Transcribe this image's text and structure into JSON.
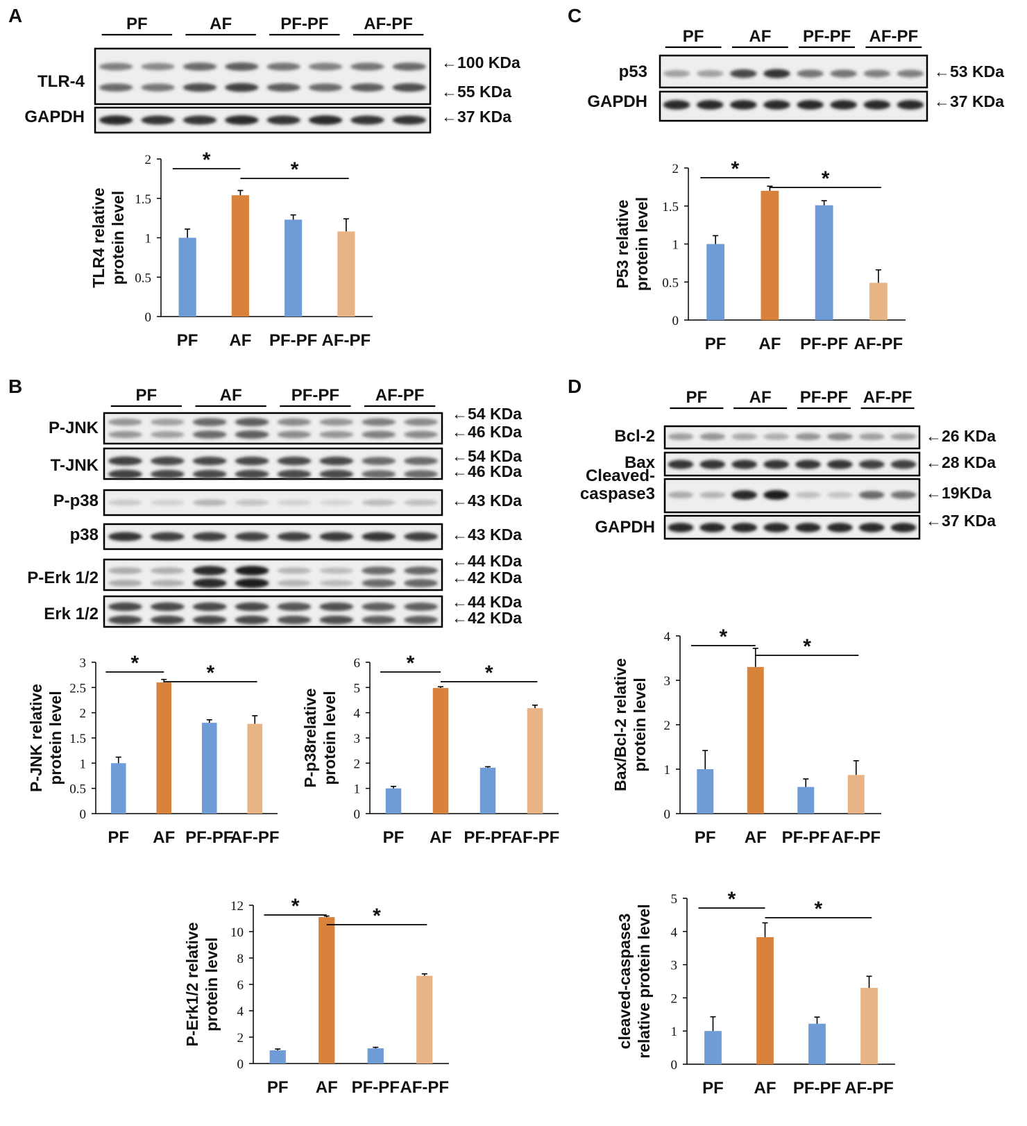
{
  "colors": {
    "blue": "#6f9bd6",
    "orange": "#d9823b",
    "peach": "#e8b486",
    "line": "#000000"
  },
  "panels": [
    {
      "label": "A",
      "groups": [
        "PF",
        "AF",
        "PF-PF",
        "AF-PF"
      ],
      "blots": [
        {
          "label": "TLR-4",
          "bands": 2,
          "markers": [
            "←100 KDa",
            "←55 KDa"
          ]
        },
        {
          "label": "GAPDH",
          "bands": 1,
          "markers": [
            "←37 KDa"
          ]
        }
      ]
    },
    {
      "label": "B",
      "groups": [
        "PF",
        "AF",
        "PF-PF",
        "AF-PF"
      ],
      "blots": [
        {
          "label": "P-JNK",
          "bands": 2,
          "markers": [
            "←54 KDa",
            "←46 KDa"
          ]
        },
        {
          "label": "T-JNK",
          "bands": 2,
          "markers": [
            "←54 KDa",
            "←46 KDa"
          ]
        },
        {
          "label": "P-p38",
          "bands": 1,
          "markers": [
            "←43 KDa"
          ]
        },
        {
          "label": "p38",
          "bands": 1,
          "markers": [
            "←43 KDa"
          ]
        },
        {
          "label": "P-Erk 1/2",
          "bands": 2,
          "markers": [
            "←44 KDa",
            "←42 KDa"
          ]
        },
        {
          "label": "Erk 1/2",
          "bands": 2,
          "markers": [
            "←44 KDa",
            "←42 KDa"
          ]
        }
      ]
    },
    {
      "label": "C",
      "groups": [
        "PF",
        "AF",
        "PF-PF",
        "AF-PF"
      ],
      "blots": [
        {
          "label": "p53",
          "bands": 1,
          "markers": [
            "←53 KDa"
          ]
        },
        {
          "label": "GAPDH",
          "bands": 1,
          "markers": [
            "←37 KDa"
          ]
        }
      ]
    },
    {
      "label": "D",
      "groups": [
        "PF",
        "AF",
        "PF-PF",
        "AF-PF"
      ],
      "blots": [
        {
          "label": "Bcl-2",
          "bands": 1,
          "markers": [
            "←26 KDa"
          ]
        },
        {
          "label": "Bax",
          "bands": 1,
          "markers": [
            "←28 KDa"
          ]
        },
        {
          "label": "Cleaved-\ncaspase3",
          "bands": 1,
          "markers": [
            "←19KDa"
          ]
        },
        {
          "label": "GAPDH",
          "bands": 1,
          "markers": [
            "←37 KDa"
          ]
        }
      ]
    }
  ],
  "chart_data": [
    {
      "type": "bar",
      "panel": "A",
      "categories": [
        "PF",
        "AF",
        "PF-PF",
        "AF-PF"
      ],
      "values": [
        1.0,
        1.54,
        1.23,
        1.08
      ],
      "errors": [
        0.11,
        0.06,
        0.06,
        0.16
      ],
      "ylabel": [
        "TLR4 relative",
        "protein level"
      ],
      "ylim": [
        0,
        2
      ],
      "ticks": [
        0,
        0.5,
        1,
        1.5,
        2
      ],
      "significance": [
        {
          "from": 0,
          "to": 1,
          "mark": "*"
        },
        {
          "from": 1,
          "to": 3,
          "mark": "*"
        }
      ]
    },
    {
      "type": "bar",
      "panel": "C",
      "categories": [
        "PF",
        "AF",
        "PF-PF",
        "AF-PF"
      ],
      "values": [
        1.0,
        1.7,
        1.51,
        0.49
      ],
      "errors": [
        0.11,
        0.06,
        0.06,
        0.17
      ],
      "ylabel": [
        "P53 relative",
        "protein level"
      ],
      "ylim": [
        0,
        2
      ],
      "ticks": [
        0,
        0.5,
        1,
        1.5,
        2
      ],
      "significance": [
        {
          "from": 0,
          "to": 1,
          "mark": "*"
        },
        {
          "from": 1,
          "to": 3,
          "mark": "*"
        }
      ]
    },
    {
      "type": "bar",
      "panel": "B",
      "categories": [
        "PF",
        "AF",
        "PF-PF",
        "AF-PF"
      ],
      "values": [
        1.0,
        2.6,
        1.8,
        1.78
      ],
      "errors": [
        0.12,
        0.06,
        0.06,
        0.16
      ],
      "ylabel": [
        "P-JNK relative",
        "protein level"
      ],
      "ylim": [
        0,
        3
      ],
      "ticks": [
        0,
        0.5,
        1,
        1.5,
        2,
        2.5,
        3
      ],
      "significance": [
        {
          "from": 0,
          "to": 1,
          "mark": "*"
        },
        {
          "from": 1,
          "to": 3,
          "mark": "*"
        }
      ]
    },
    {
      "type": "bar",
      "panel": "B",
      "categories": [
        "PF",
        "AF",
        "PF-PF",
        "AF-PF"
      ],
      "values": [
        1.0,
        4.98,
        1.82,
        4.18
      ],
      "errors": [
        0.08,
        0.05,
        0.04,
        0.12
      ],
      "ylabel": [
        "P-p38relative",
        "protein level"
      ],
      "ylim": [
        0,
        6
      ],
      "ticks": [
        0,
        1,
        2,
        3,
        4,
        5,
        6
      ],
      "significance": [
        {
          "from": 0,
          "to": 1,
          "mark": "*"
        },
        {
          "from": 1,
          "to": 3,
          "mark": "*"
        }
      ]
    },
    {
      "type": "bar",
      "panel": "D",
      "categories": [
        "PF",
        "AF",
        "PF-PF",
        "AF-PF"
      ],
      "values": [
        1.0,
        3.3,
        0.6,
        0.87
      ],
      "errors": [
        0.42,
        0.42,
        0.18,
        0.32
      ],
      "ylabel": [
        "Bax/Bcl-2 relative",
        "protein level"
      ],
      "ylim": [
        0,
        4
      ],
      "ticks": [
        0,
        1,
        2,
        3,
        4
      ],
      "significance": [
        {
          "from": 0,
          "to": 1,
          "mark": "*"
        },
        {
          "from": 1,
          "to": 3,
          "mark": "*"
        }
      ]
    },
    {
      "type": "bar",
      "panel": "B",
      "categories": [
        "PF",
        "AF",
        "PF-PF",
        "AF-PF"
      ],
      "values": [
        1.0,
        11.1,
        1.15,
        6.65
      ],
      "errors": [
        0.1,
        0.08,
        0.08,
        0.15
      ],
      "ylabel": [
        "P-Erk1/2 relative",
        "protein level"
      ],
      "ylim": [
        0,
        12
      ],
      "ticks": [
        0,
        2,
        4,
        6,
        8,
        10,
        12
      ],
      "significance": [
        {
          "from": 0,
          "to": 1,
          "mark": "*"
        },
        {
          "from": 1,
          "to": 3,
          "mark": "*"
        }
      ]
    },
    {
      "type": "bar",
      "panel": "D",
      "categories": [
        "PF",
        "AF",
        "PF-PF",
        "AF-PF"
      ],
      "values": [
        1.0,
        3.83,
        1.22,
        2.3
      ],
      "errors": [
        0.43,
        0.43,
        0.2,
        0.35
      ],
      "ylabel": [
        "cleaved-caspase3",
        "relative protein level"
      ],
      "ylim": [
        0,
        5
      ],
      "ticks": [
        0,
        1,
        2,
        3,
        4,
        5
      ],
      "significance": [
        {
          "from": 0,
          "to": 1,
          "mark": "*"
        },
        {
          "from": 1,
          "to": 3,
          "mark": "*"
        }
      ]
    }
  ]
}
